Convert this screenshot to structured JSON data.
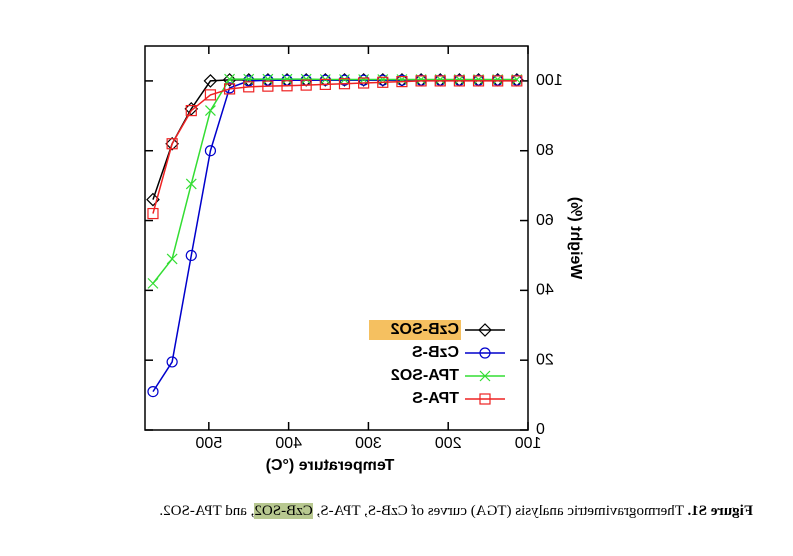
{
  "chart_data": {
    "type": "line",
    "x_label": "Temperature (°C)",
    "y_label": "Weight (%)",
    "x": [
      570,
      546,
      522,
      498,
      474,
      450,
      426,
      402,
      378,
      354,
      330,
      306,
      282,
      258,
      234,
      210,
      186,
      162,
      138,
      114
    ],
    "series": [
      {
        "name": "CzB-SO2",
        "color": "#000000",
        "marker": "diamond",
        "highlight": "#f5c060",
        "values": [
          66,
          82,
          92,
          100,
          100.3,
          100.3,
          100.3,
          100.3,
          100.3,
          100.3,
          100.3,
          100.3,
          100.3,
          100.3,
          100.3,
          100.3,
          100.3,
          100.3,
          100.3,
          100.3
        ]
      },
      {
        "name": "CzB-S",
        "color": "#0000cc",
        "marker": "circle",
        "values": [
          11,
          19.5,
          50,
          80,
          98,
          100,
          100.2,
          100.2,
          100.2,
          100.2,
          100.2,
          100.2,
          100.2,
          100.2,
          100.2,
          100.2,
          100.2,
          100.2,
          100.2,
          100.2
        ]
      },
      {
        "name": "TPA-SO2",
        "color": "#33dd33",
        "marker": "x",
        "values": [
          42,
          49,
          70.5,
          91.5,
          100.5,
          100.5,
          100.5,
          100.5,
          100.5,
          100.4,
          100.4,
          100.4,
          100.4,
          100.4,
          100.4,
          100.4,
          100.4,
          100.4,
          100.4,
          100.4
        ]
      },
      {
        "name": "TPA-S",
        "color": "#ee2222",
        "marker": "square",
        "values": [
          62,
          82,
          91.5,
          96,
          97.7,
          98.3,
          98.5,
          98.6,
          98.8,
          99,
          99.2,
          99.4,
          99.6,
          99.8,
          100,
          100,
          100,
          100,
          100,
          100
        ]
      }
    ],
    "xlim": [
      100,
      580
    ],
    "ylim": [
      0,
      110
    ],
    "xticks": [
      100,
      200,
      300,
      400,
      500
    ],
    "yticks": [
      0,
      20,
      40,
      60,
      80,
      100
    ],
    "legend": "lower left",
    "mirrored": true
  },
  "caption": {
    "label": "Figure S1.",
    "parts": [
      "Thermogravimetric analysis (TGA) curves of CzB-S, TPA-S, ",
      "CzB-SO2",
      ", and TPA-SO2."
    ]
  }
}
